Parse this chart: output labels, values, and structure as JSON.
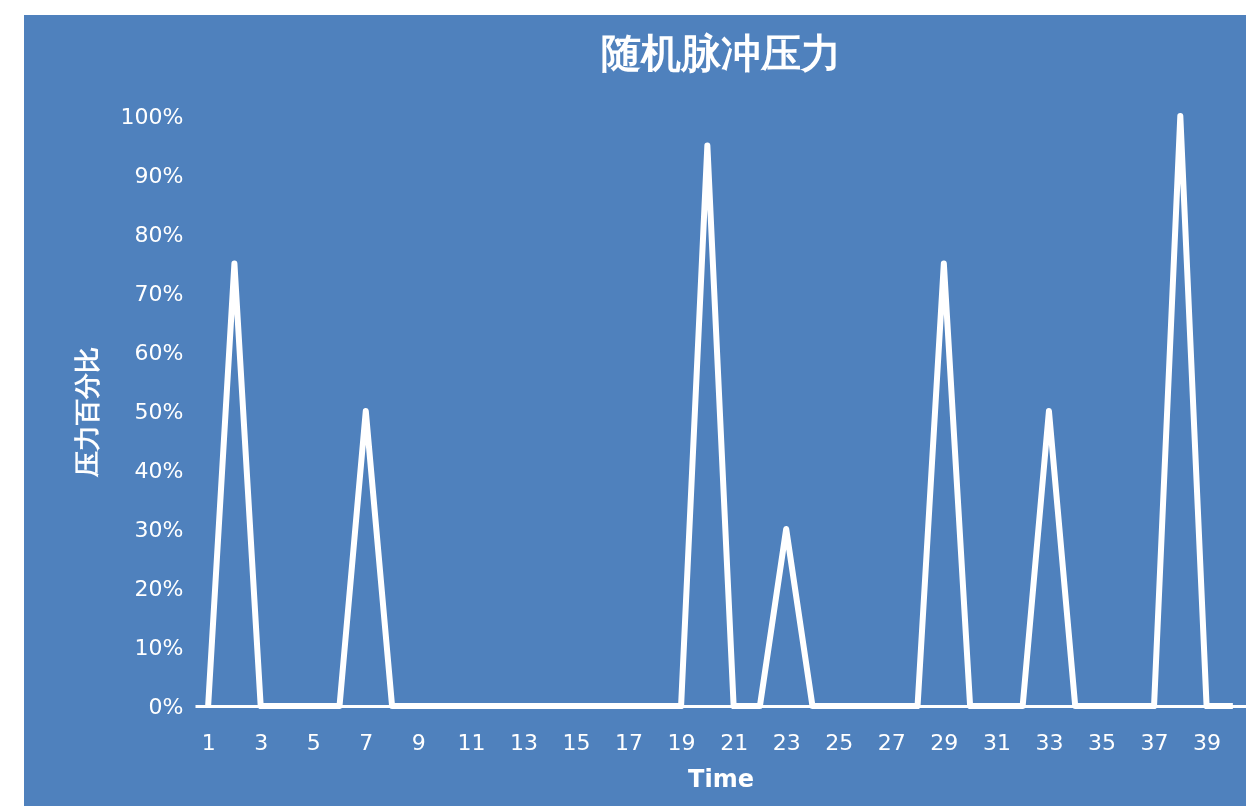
{
  "chart_data": {
    "type": "line",
    "title": "随机脉冲压力",
    "xlabel": "Time",
    "ylabel": "压力百分比",
    "x": [
      1,
      2,
      3,
      4,
      5,
      6,
      7,
      8,
      9,
      10,
      11,
      12,
      13,
      14,
      15,
      16,
      17,
      18,
      19,
      20,
      21,
      22,
      23,
      24,
      25,
      26,
      27,
      28,
      29,
      30,
      31,
      32,
      33,
      34,
      35,
      36,
      37,
      38,
      39,
      40
    ],
    "series": [
      {
        "color": "#ffffff",
        "values": [
          0,
          75,
          0,
          0,
          0,
          0,
          50,
          0,
          0,
          0,
          0,
          0,
          0,
          0,
          0,
          0,
          0,
          0,
          0,
          95,
          0,
          0,
          30,
          0,
          0,
          0,
          0,
          0,
          75,
          0,
          0,
          0,
          50,
          0,
          0,
          0,
          0,
          100,
          0,
          0
        ]
      }
    ],
    "xlim": [
      0.5,
      40.5
    ],
    "xticks": [
      1,
      3,
      5,
      7,
      9,
      11,
      13,
      15,
      17,
      19,
      21,
      23,
      25,
      27,
      29,
      31,
      33,
      35,
      37,
      39
    ],
    "ylim": [
      0,
      100
    ],
    "yticks": [
      {
        "value": 0,
        "label": "0%"
      },
      {
        "value": 10,
        "label": "10%"
      },
      {
        "value": 20,
        "label": "20%"
      },
      {
        "value": 30,
        "label": "30%"
      },
      {
        "value": 40,
        "label": "40%"
      },
      {
        "value": 50,
        "label": "50%"
      },
      {
        "value": 60,
        "label": "60%"
      },
      {
        "value": 70,
        "label": "70%"
      },
      {
        "value": 80,
        "label": "80%"
      },
      {
        "value": 90,
        "label": "90%"
      },
      {
        "value": 100,
        "label": "100%"
      }
    ],
    "grid": false,
    "legend": false,
    "marker": "none",
    "line_style": "solid"
  }
}
